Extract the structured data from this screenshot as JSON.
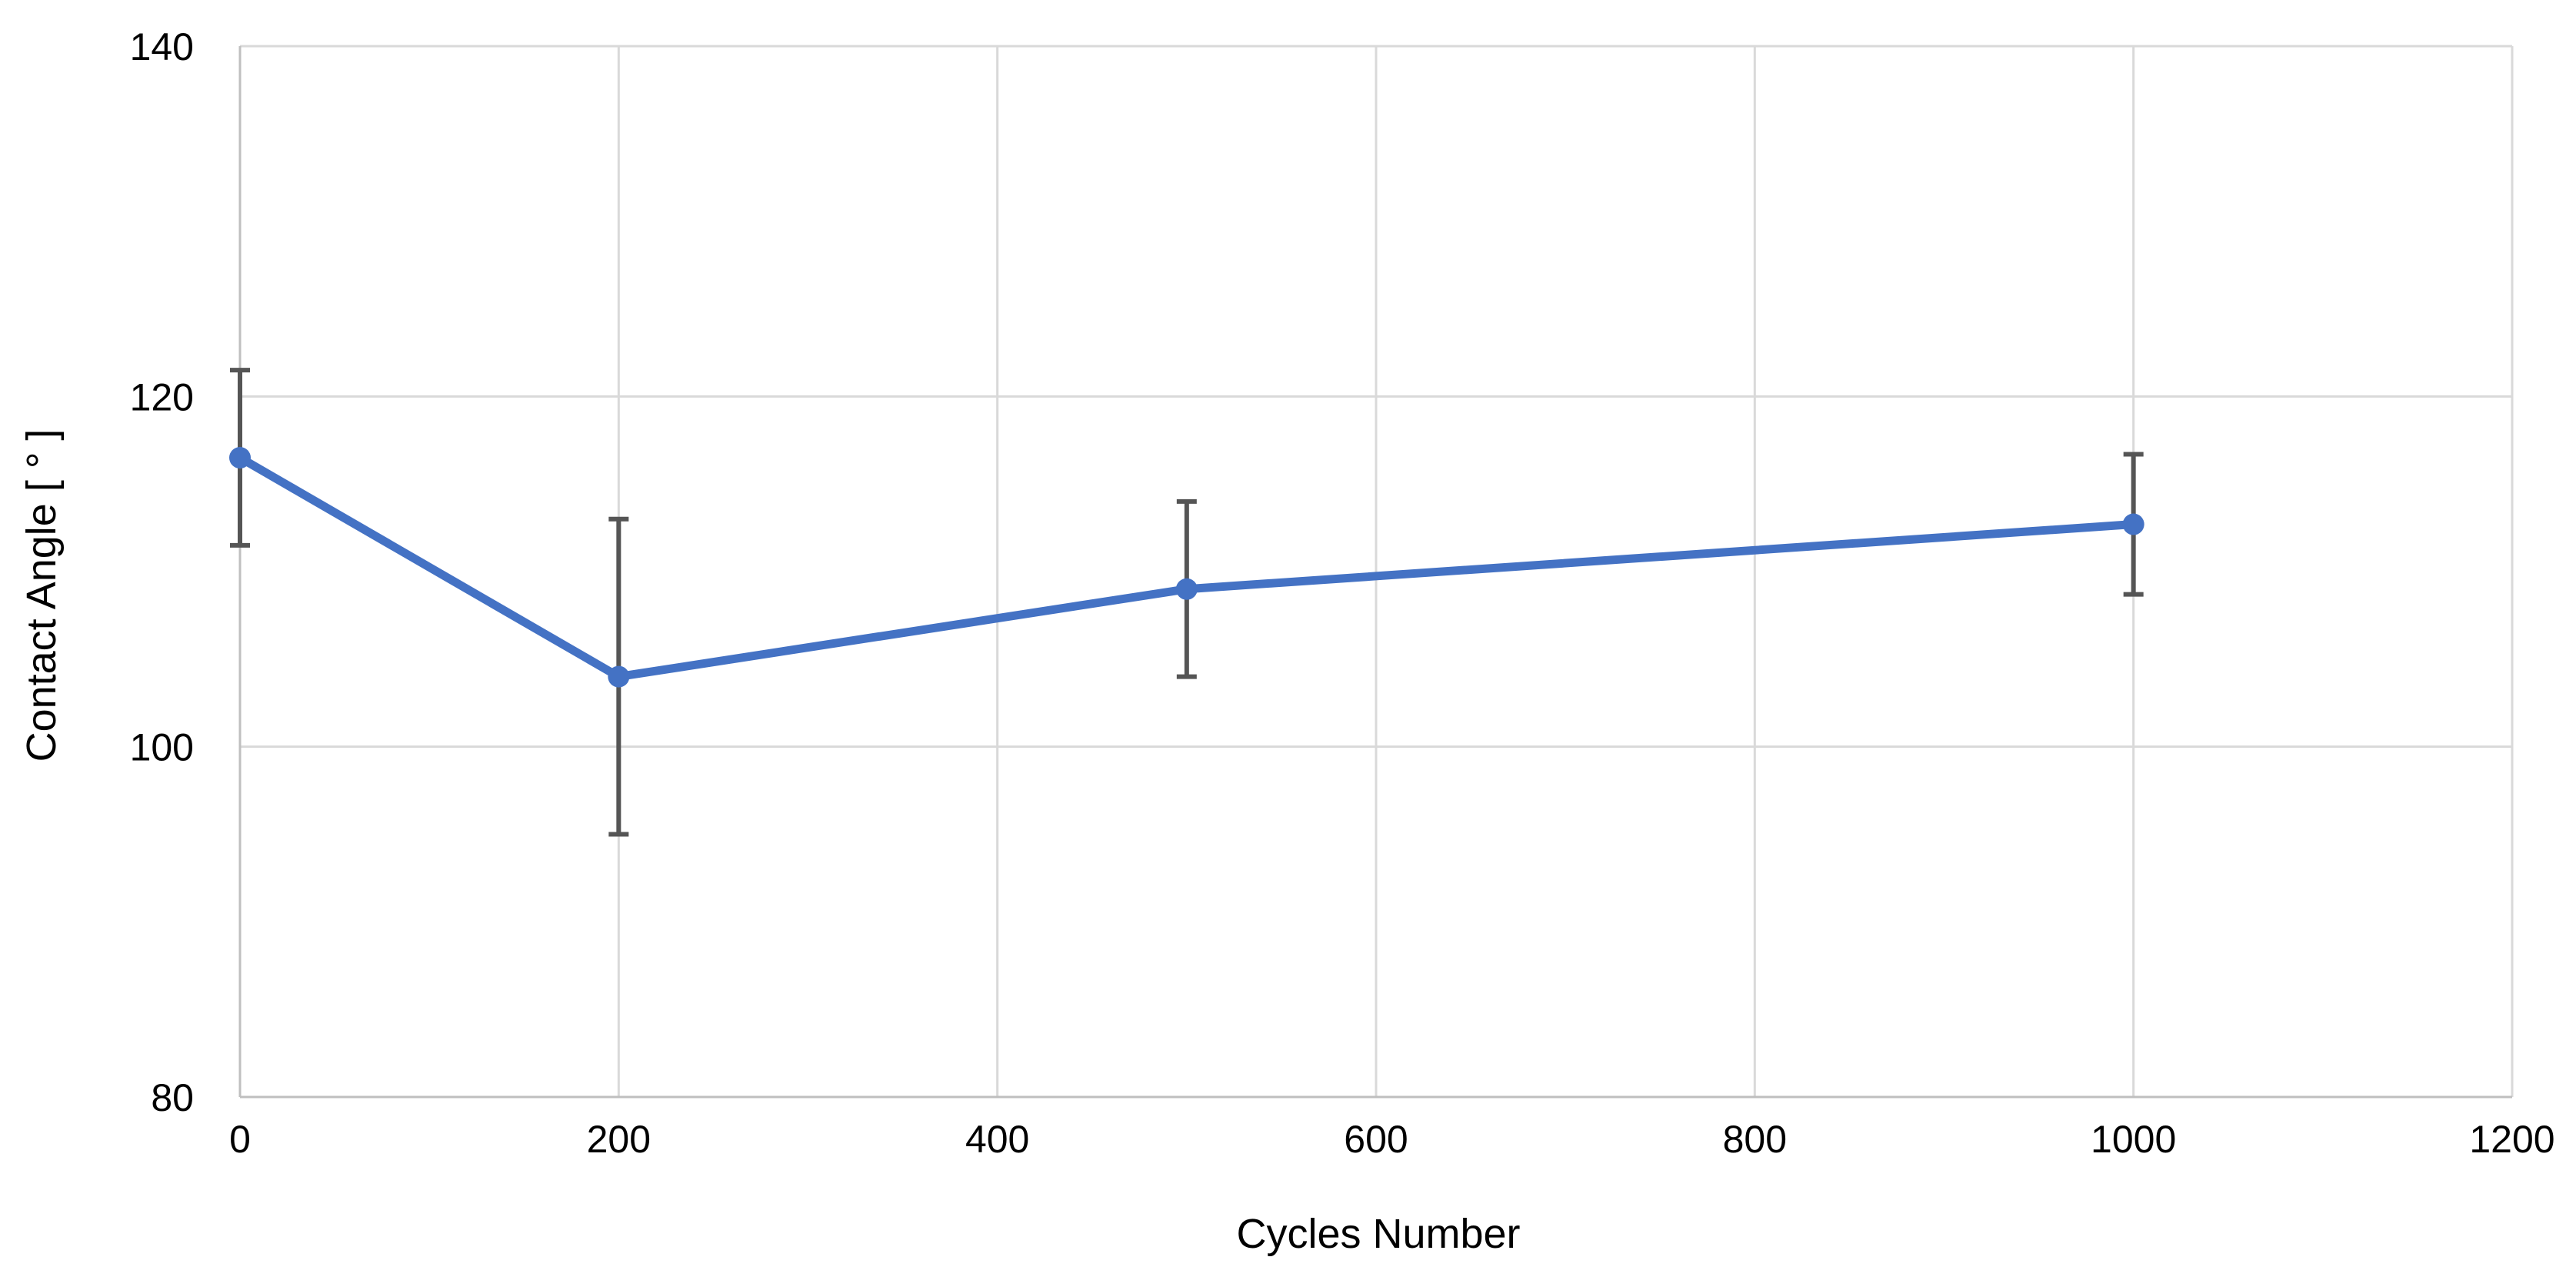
{
  "chart_data": {
    "type": "line",
    "title": "",
    "xlabel": "Cycles Number",
    "ylabel": "Contact Angle [ ° ]",
    "xlim": [
      0,
      1200
    ],
    "ylim": [
      80,
      140
    ],
    "x_ticks": [
      0,
      200,
      400,
      600,
      800,
      1000,
      1200
    ],
    "y_ticks": [
      80,
      100,
      120,
      140
    ],
    "x_tick_labels": [
      "0",
      "200",
      "400",
      "600",
      "800",
      "1000",
      "1200"
    ],
    "y_tick_labels": [
      "80",
      "100",
      "120",
      "140"
    ],
    "grid": true,
    "legend": "none",
    "series": [
      {
        "color": "#4472C4",
        "x": [
          0,
          200,
          500,
          1000
        ],
        "y": [
          116.5,
          104,
          109,
          112.7
        ],
        "error": [
          5,
          9,
          5,
          4
        ]
      }
    ],
    "colors": {
      "line": "#4472C4",
      "error_bar": "#555555",
      "grid": "#d9d9d9",
      "axis": "#bfbfbf"
    }
  }
}
